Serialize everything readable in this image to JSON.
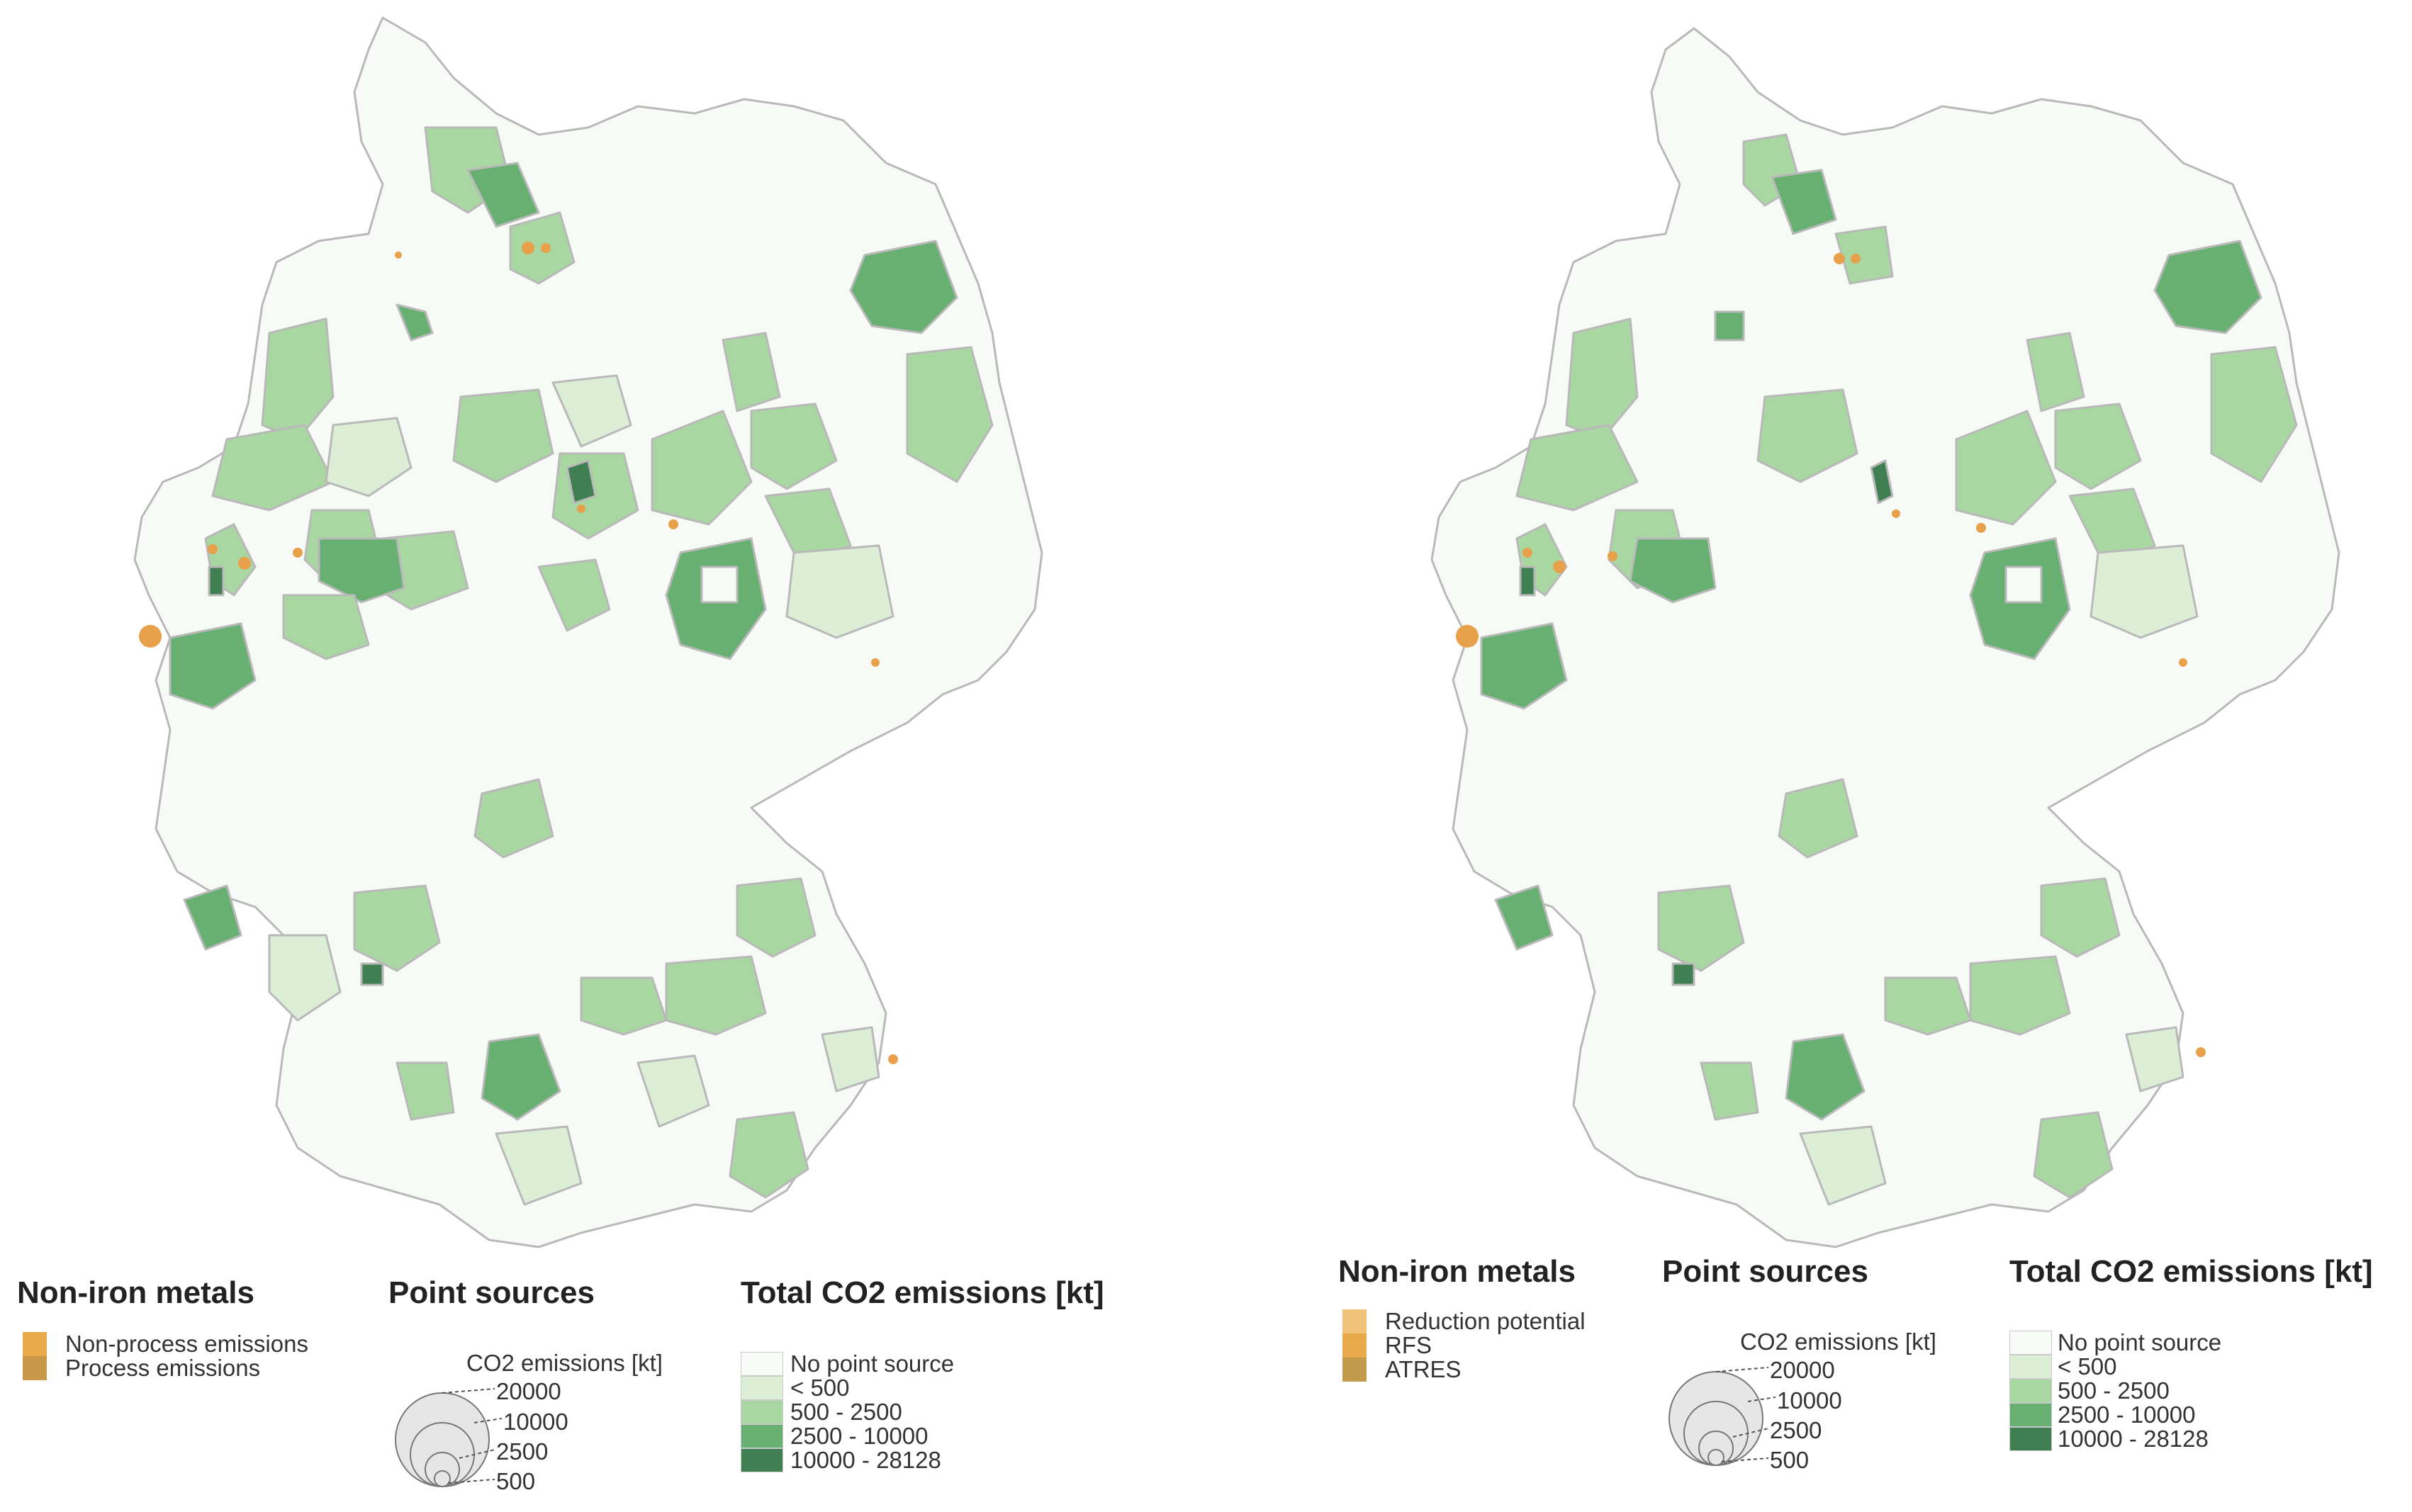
{
  "maps": [
    {
      "legends": {
        "metals": {
          "title": "Non-iron metals",
          "items": [
            {
              "label": "Non-process emissions",
              "color": "#e8a94a"
            },
            {
              "label": "Process emissions",
              "color": "#c9974a"
            }
          ]
        },
        "point_sources": {
          "title": "Point sources",
          "unit_label": "CO2 emissions [kt]",
          "sizes": [
            "20000",
            "10000",
            "2500",
            "500"
          ]
        },
        "total": {
          "title": "Total CO2 emissions [kt]",
          "classes": [
            {
              "label": "No point source",
              "color": "#f7faf6"
            },
            {
              "label": "< 500",
              "color": "#dcefd6"
            },
            {
              "label": "500 - 2500",
              "color": "#a9d7a1"
            },
            {
              "label": "2500 - 10000",
              "color": "#67b072"
            },
            {
              "label": "10000 - 28128",
              "color": "#3f7f52"
            }
          ]
        }
      }
    },
    {
      "legends": {
        "metals": {
          "title": "Non-iron metals",
          "items": [
            {
              "label": "Reduction potential",
              "color": "#f0c27a"
            },
            {
              "label": "RFS",
              "color": "#e8a94a"
            },
            {
              "label": "ATRES",
              "color": "#c29a4c"
            }
          ]
        },
        "point_sources": {
          "title": "Point sources",
          "unit_label": "CO2 emissions [kt]",
          "sizes": [
            "20000",
            "10000",
            "2500",
            "500"
          ]
        },
        "total": {
          "title": "Total CO2 emissions [kt]",
          "classes": [
            {
              "label": "No point source",
              "color": "#f7faf6"
            },
            {
              "label": "< 500",
              "color": "#dcefd6"
            },
            {
              "label": "500 - 2500",
              "color": "#a9d7a1"
            },
            {
              "label": "2500 - 10000",
              "color": "#67b072"
            },
            {
              "label": "10000 - 28128",
              "color": "#3f7f52"
            }
          ]
        }
      }
    }
  ]
}
